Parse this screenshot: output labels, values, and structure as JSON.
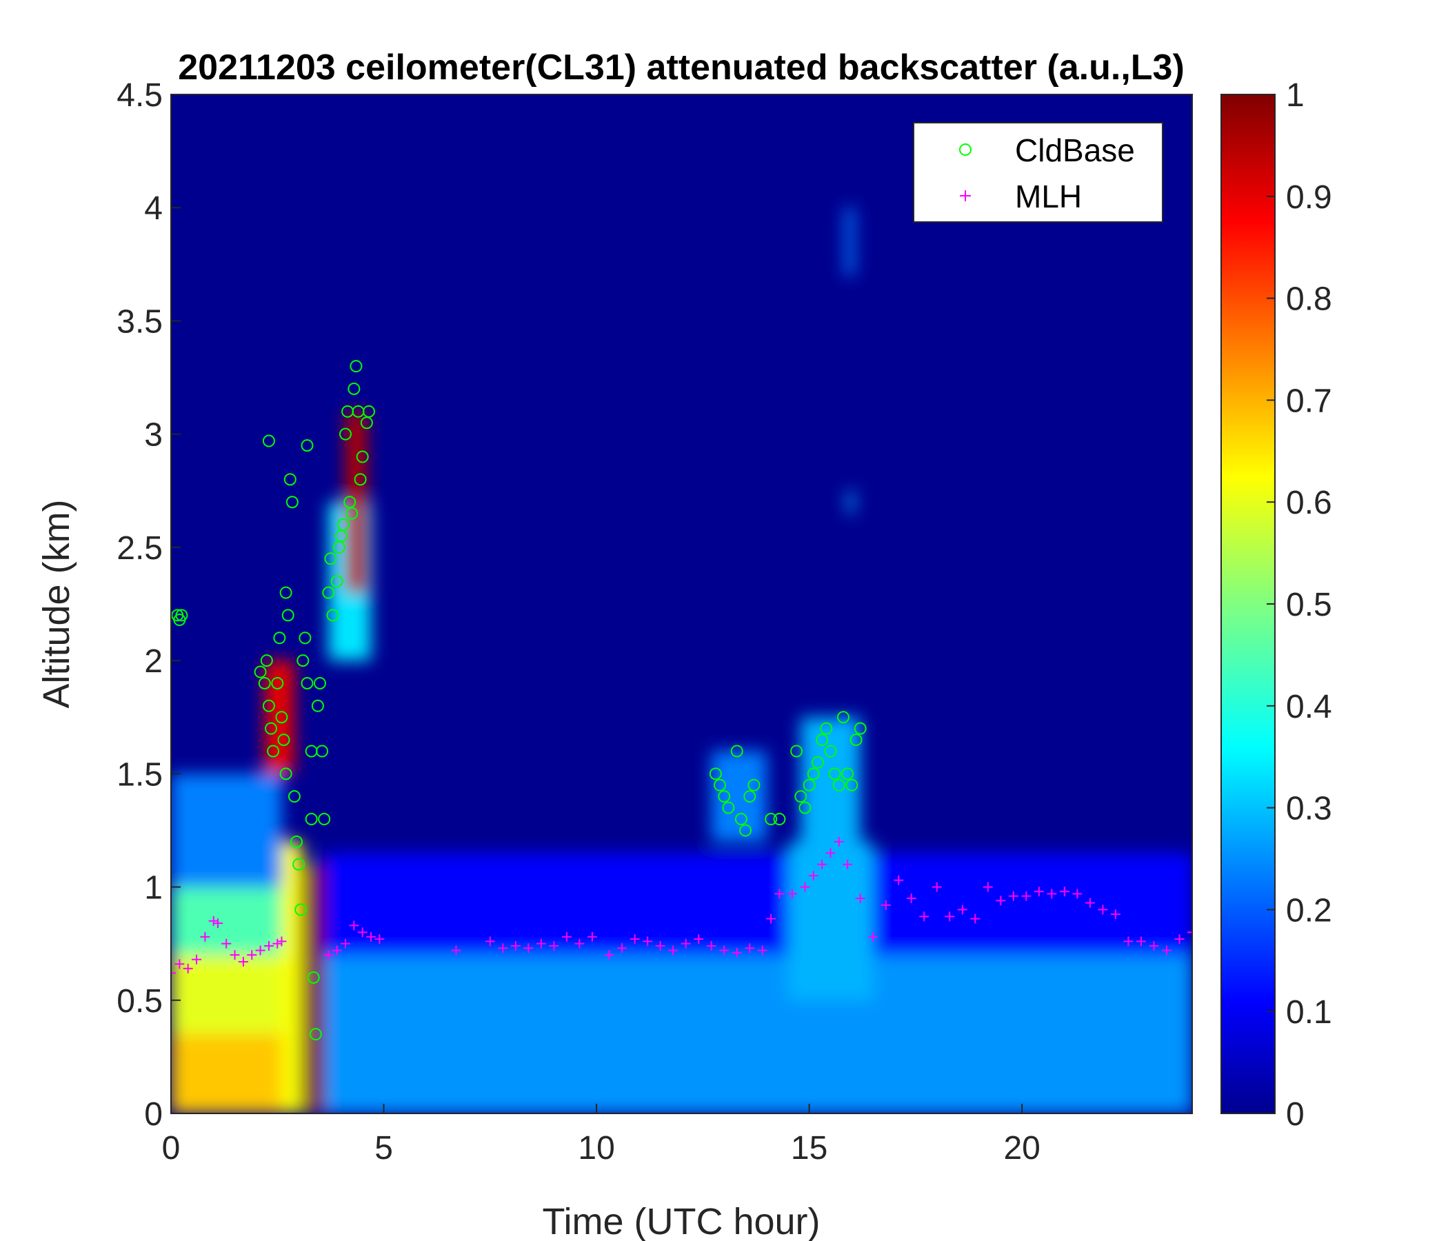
{
  "chart_data": {
    "type": "heatmap",
    "title": "20211203 ceilometer(CL31) attenuated backscatter (a.u.,L3)",
    "xlabel": "Time (UTC hour)",
    "ylabel": "Altitude (km)",
    "xlim": [
      0,
      24
    ],
    "ylim": [
      0,
      4.5
    ],
    "x_ticks": [
      "0",
      "5",
      "10",
      "15",
      "20"
    ],
    "x_tick_values": [
      0,
      5,
      10,
      15,
      20
    ],
    "y_ticks": [
      "0",
      "0.5",
      "1",
      "1.5",
      "2",
      "2.5",
      "3",
      "3.5",
      "4",
      "4.5"
    ],
    "y_tick_values": [
      0,
      0.5,
      1,
      1.5,
      2,
      2.5,
      3,
      3.5,
      4,
      4.5
    ],
    "colorbar": {
      "colormap": "jet",
      "range": [
        0,
        1
      ],
      "ticks": [
        "0",
        "0.1",
        "0.2",
        "0.3",
        "0.4",
        "0.5",
        "0.6",
        "0.7",
        "0.8",
        "0.9",
        "1"
      ],
      "tick_values": [
        0,
        0.1,
        0.2,
        0.3,
        0.4,
        0.5,
        0.6,
        0.7,
        0.8,
        0.9,
        1
      ]
    },
    "legend": {
      "placement": "top-right",
      "entries": [
        {
          "label": "CldBase",
          "marker": "circle",
          "color": "#00ff00"
        },
        {
          "label": "MLH",
          "marker": "plus",
          "color": "#ff00ff"
        }
      ]
    },
    "backscatter_regions": [
      {
        "t0": 0,
        "t1": 2.6,
        "z0": 0,
        "z1": 0.35,
        "value": 0.68
      },
      {
        "t0": 0,
        "t1": 2.6,
        "z0": 0.35,
        "z1": 0.7,
        "value": 0.6
      },
      {
        "t0": 0,
        "t1": 2.6,
        "z0": 0.7,
        "z1": 1.0,
        "value": 0.45
      },
      {
        "t0": 0,
        "t1": 2.6,
        "z0": 1.0,
        "z1": 1.5,
        "value": 0.25
      },
      {
        "t0": 2.6,
        "t1": 3.1,
        "z0": 0,
        "z1": 1.2,
        "value": 0.62
      },
      {
        "t0": 3.15,
        "t1": 3.6,
        "z0": 0,
        "z1": 1.1,
        "value": 1.0
      },
      {
        "t0": 3.6,
        "t1": 24,
        "z0": 0,
        "z1": 0.7,
        "value": 0.27
      },
      {
        "t0": 3.6,
        "t1": 24,
        "z0": 0.7,
        "z1": 1.15,
        "value": 0.13
      },
      {
        "t0": 14.5,
        "t1": 16.5,
        "z0": 0.5,
        "z1": 1.2,
        "value": 0.3
      },
      {
        "t0": 12.7,
        "t1": 14.0,
        "z0": 1.2,
        "z1": 1.6,
        "value": 0.25
      },
      {
        "t0": 14.8,
        "t1": 16.2,
        "z0": 1.2,
        "z1": 1.75,
        "value": 0.3
      },
      {
        "t0": 3.7,
        "t1": 4.7,
        "z0": 2.0,
        "z1": 2.7,
        "value": 0.35
      },
      {
        "t0": 4.1,
        "t1": 4.6,
        "z0": 2.3,
        "z1": 3.1,
        "value": 0.95
      },
      {
        "t0": 2.2,
        "t1": 2.9,
        "z0": 1.5,
        "z1": 2.0,
        "value": 0.9
      },
      {
        "t0": 15.9,
        "t1": 16.05,
        "z0": 2.65,
        "z1": 2.75,
        "value": 0.3
      },
      {
        "t0": 15.85,
        "t1": 16.05,
        "z0": 3.7,
        "z1": 4.0,
        "value": 0.25
      }
    ],
    "series": [
      {
        "name": "CldBase",
        "x": [
          0.15,
          0.2,
          0.25,
          2.1,
          2.2,
          2.25,
          2.3,
          2.35,
          2.4,
          2.5,
          2.55,
          2.6,
          2.65,
          2.7,
          2.7,
          2.75,
          2.8,
          2.85,
          2.9,
          2.95,
          3.0,
          3.05,
          3.1,
          3.15,
          3.2,
          3.3,
          3.3,
          3.35,
          3.4,
          3.45,
          3.5,
          3.55,
          3.6,
          3.7,
          3.75,
          3.8,
          3.9,
          3.95,
          4.0,
          4.05,
          4.1,
          4.15,
          4.2,
          4.25,
          4.3,
          4.35,
          4.4,
          4.45,
          4.5,
          4.6,
          4.65,
          2.3,
          3.2,
          12.8,
          12.9,
          13.0,
          13.1,
          13.3,
          13.4,
          13.5,
          13.6,
          13.7,
          14.1,
          14.3,
          14.7,
          14.8,
          14.9,
          15.0,
          15.1,
          15.2,
          15.3,
          15.4,
          15.5,
          15.6,
          15.7,
          15.8,
          15.9,
          16.0,
          16.1,
          16.2
        ],
        "y": [
          2.2,
          2.18,
          2.2,
          1.95,
          1.9,
          2.0,
          1.8,
          1.7,
          1.6,
          1.9,
          2.1,
          1.75,
          1.65,
          1.5,
          2.3,
          2.2,
          2.8,
          2.7,
          1.4,
          1.2,
          1.1,
          0.9,
          2.0,
          2.1,
          1.9,
          1.6,
          1.3,
          0.6,
          0.35,
          1.8,
          1.9,
          1.6,
          1.3,
          2.3,
          2.45,
          2.2,
          2.35,
          2.5,
          2.55,
          2.6,
          3.0,
          3.1,
          2.7,
          2.65,
          3.2,
          3.3,
          3.1,
          2.8,
          2.9,
          3.05,
          3.1,
          2.97,
          2.95,
          1.5,
          1.45,
          1.4,
          1.35,
          1.6,
          1.3,
          1.25,
          1.4,
          1.45,
          1.3,
          1.3,
          1.6,
          1.4,
          1.35,
          1.45,
          1.5,
          1.55,
          1.65,
          1.7,
          1.6,
          1.5,
          1.45,
          1.75,
          1.5,
          1.45,
          1.65,
          1.7
        ]
      },
      {
        "name": "MLH",
        "x": [
          0,
          0.2,
          0.4,
          0.6,
          0.8,
          1.0,
          1.1,
          1.3,
          1.5,
          1.7,
          1.9,
          2.1,
          2.3,
          2.5,
          2.6,
          3.7,
          3.9,
          4.1,
          4.3,
          4.5,
          4.7,
          4.9,
          6.7,
          7.5,
          7.8,
          8.1,
          8.4,
          8.7,
          9.0,
          9.3,
          9.6,
          9.9,
          10.3,
          10.6,
          10.9,
          11.2,
          11.5,
          11.8,
          12.1,
          12.4,
          12.7,
          13.0,
          13.3,
          13.6,
          13.9,
          14.1,
          14.3,
          14.6,
          14.9,
          15.1,
          15.3,
          15.5,
          15.7,
          15.9,
          16.2,
          16.5,
          16.8,
          17.1,
          17.4,
          17.7,
          18.0,
          18.3,
          18.6,
          18.9,
          19.2,
          19.5,
          19.8,
          20.1,
          20.4,
          20.7,
          21.0,
          21.3,
          21.6,
          21.9,
          22.2,
          22.5,
          22.8,
          23.1,
          23.4,
          23.7,
          24.0
        ],
        "y": [
          0.62,
          0.66,
          0.64,
          0.68,
          0.78,
          0.85,
          0.84,
          0.75,
          0.7,
          0.67,
          0.7,
          0.72,
          0.74,
          0.75,
          0.76,
          0.7,
          0.72,
          0.75,
          0.83,
          0.8,
          0.78,
          0.77,
          0.72,
          0.76,
          0.73,
          0.74,
          0.73,
          0.75,
          0.74,
          0.78,
          0.75,
          0.78,
          0.7,
          0.73,
          0.77,
          0.76,
          0.74,
          0.72,
          0.75,
          0.77,
          0.74,
          0.72,
          0.71,
          0.73,
          0.72,
          0.86,
          0.97,
          0.97,
          1.0,
          1.05,
          1.1,
          1.15,
          1.2,
          1.1,
          0.95,
          0.78,
          0.92,
          1.03,
          0.95,
          0.87,
          1.0,
          0.87,
          0.9,
          0.86,
          1.0,
          0.94,
          0.96,
          0.96,
          0.98,
          0.97,
          0.98,
          0.97,
          0.93,
          0.9,
          0.88,
          0.76,
          0.76,
          0.74,
          0.72,
          0.77,
          0.8
        ]
      }
    ]
  }
}
